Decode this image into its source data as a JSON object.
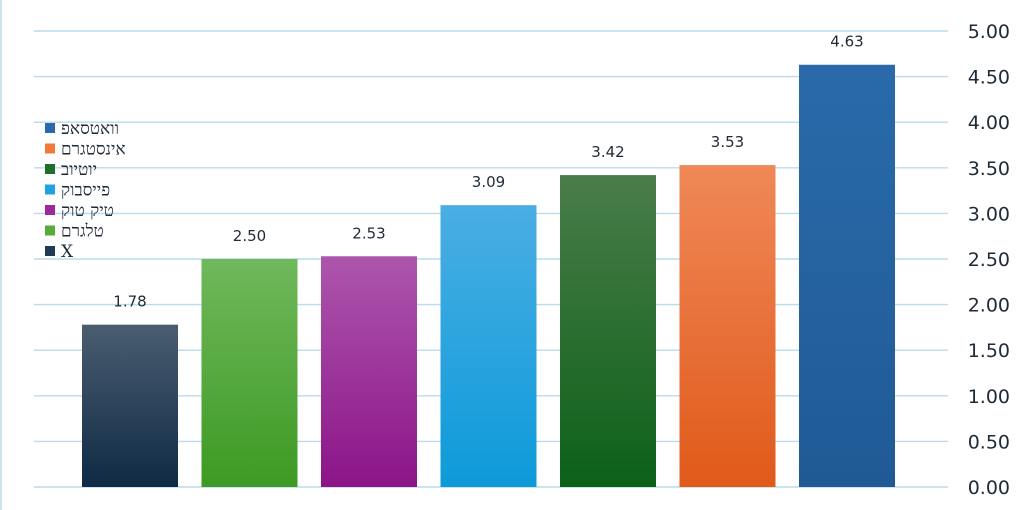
{
  "chart_data": {
    "type": "bar",
    "categories": [
      "X",
      "טלגרם",
      "טיק טוק",
      "פייסבוק",
      "יוטיוב",
      "אינסטגרם",
      "וואטסאפ"
    ],
    "values": [
      1.78,
      2.5,
      2.53,
      3.09,
      3.42,
      3.53,
      4.63
    ],
    "value_labels": [
      "1.78",
      "2.50",
      "2.53",
      "3.09",
      "3.42",
      "3.53",
      "4.63"
    ],
    "colors_top": [
      "#4a5d70",
      "#70b85c",
      "#ad56ad",
      "#4aaee4",
      "#4a7c4a",
      "#f08858",
      "#2a6aaa"
    ],
    "colors_bottom": [
      "#0f2a45",
      "#3d9a23",
      "#8c1488",
      "#0d9ad9",
      "#0c6118",
      "#e05a1a",
      "#1f5a95"
    ],
    "y_ticks": [
      "0.00",
      "0.50",
      "1.00",
      "1.50",
      "2.00",
      "2.50",
      "3.00",
      "3.50",
      "4.00",
      "4.50",
      "5.00"
    ],
    "ylim": [
      0,
      5
    ],
    "y_axis_position": "right",
    "grid": true,
    "legend": {
      "position": "left",
      "items": [
        {
          "label": "וואטסאפ",
          "color": "#2a6aaa"
        },
        {
          "label": "אינסטגרם",
          "color": "#f07a3a"
        },
        {
          "label": "יוטיוב",
          "color": "#1e6f2a"
        },
        {
          "label": "פייסבוק",
          "color": "#1ea3e0"
        },
        {
          "label": "טיק טוק",
          "color": "#9c2a9c"
        },
        {
          "label": "טלגרם",
          "color": "#56ab3a"
        },
        {
          "label": "X",
          "color": "#203a55"
        }
      ]
    }
  }
}
